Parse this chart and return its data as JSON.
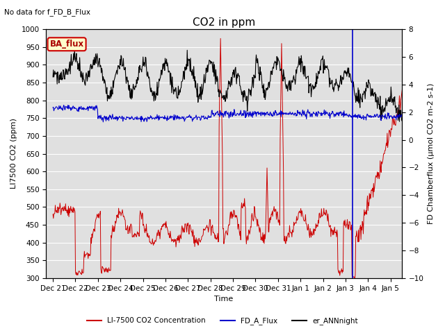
{
  "title": "CO2 in ppm",
  "top_left_text": "No data for f_FD_B_Flux",
  "legend_box_text": "BA_flux",
  "ylabel_left": "LI7500 CO2 (ppm)",
  "ylabel_right": "FD Chamberflux (μmol CO2 m-2 s-1)",
  "xlabel": "Time",
  "ylim_left": [
    300,
    1000
  ],
  "ylim_right": [
    -10,
    8
  ],
  "background_color": "#e0e0e0",
  "legend_box_color": "#ffffcc",
  "legend_box_edge_color": "#cc0000",
  "xtick_labels": [
    "Dec 21",
    "Dec 22",
    "Dec 23",
    "Dec 24",
    "Dec 25",
    "Dec 26",
    "Dec 27",
    "Dec 28",
    "Dec 29",
    "Dec 30",
    "Dec 31",
    "Jan 1",
    "Jan 2",
    "Jan 3",
    "Jan 4",
    "Jan 5"
  ],
  "red_line_color": "#cc0000",
  "blue_line_color": "#0000cc",
  "black_line_color": "#000000",
  "legend_red": "LI-7500 CO2 Concentration",
  "legend_blue": "FD_A_Flux",
  "legend_black": "er_ANNnight",
  "grid_color": "#ffffff",
  "title_fontsize": 11,
  "label_fontsize": 8,
  "tick_fontsize": 7.5
}
